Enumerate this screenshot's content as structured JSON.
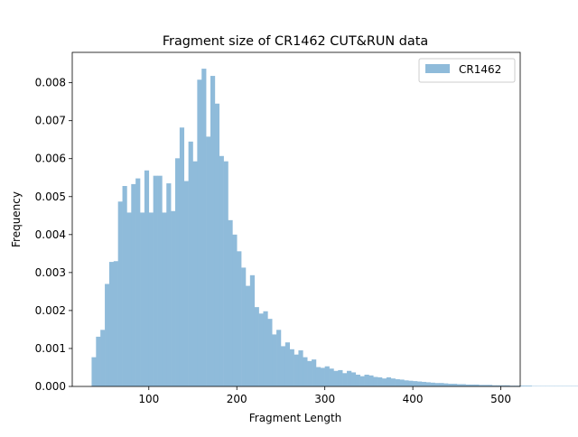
{
  "chart_data": {
    "type": "histogram",
    "title": "Fragment size of CR1462 CUT&RUN data",
    "xlabel": "Fragment Length",
    "ylabel": "Frequency",
    "xlim": [
      13,
      522
    ],
    "ylim": [
      0,
      0.0088
    ],
    "xticks": [
      100,
      200,
      300,
      400,
      500
    ],
    "yticks": [
      0.0,
      0.001,
      0.002,
      0.003,
      0.004,
      0.005,
      0.006,
      0.007,
      0.008
    ],
    "ytick_labels": [
      "0.000",
      "0.001",
      "0.002",
      "0.003",
      "0.004",
      "0.005",
      "0.006",
      "0.007",
      "0.008"
    ],
    "grid": false,
    "legend": {
      "position": "top-right",
      "entries": [
        "CR1462"
      ]
    },
    "bar_color": "#8fbbda",
    "series": [
      {
        "name": "CR1462",
        "bin_start": 35,
        "bin_width": 5,
        "values": [
          0.00077,
          0.00131,
          0.00149,
          0.0027,
          0.00328,
          0.0033,
          0.00487,
          0.00528,
          0.00458,
          0.00533,
          0.00548,
          0.00458,
          0.00569,
          0.00458,
          0.00555,
          0.00555,
          0.00458,
          0.00535,
          0.00462,
          0.00601,
          0.00682,
          0.00541,
          0.00645,
          0.00593,
          0.00808,
          0.00837,
          0.00658,
          0.00818,
          0.00745,
          0.00607,
          0.00593,
          0.00438,
          0.004,
          0.00356,
          0.00313,
          0.00265,
          0.00293,
          0.00209,
          0.00192,
          0.00198,
          0.00178,
          0.00137,
          0.00149,
          0.00106,
          0.00116,
          0.00098,
          0.00084,
          0.00095,
          0.00077,
          0.00067,
          0.00071,
          0.00051,
          0.00049,
          0.00053,
          0.00047,
          0.00041,
          0.00043,
          0.00035,
          0.00041,
          0.00037,
          0.00031,
          0.00027,
          0.00031,
          0.00029,
          0.00025,
          0.00024,
          0.00021,
          0.00024,
          0.00021,
          0.00019,
          0.00018,
          0.00016,
          0.00015,
          0.00014,
          0.00013,
          0.00012,
          0.00011,
          0.0001,
          9e-05,
          9e-05,
          8e-05,
          7e-05,
          7e-05,
          6e-05,
          6e-05,
          5e-05,
          5e-05,
          5e-05,
          4e-05,
          4e-05,
          4e-05,
          3e-05,
          3e-05,
          3e-05,
          3e-05,
          2e-05,
          2e-05,
          2e-05,
          2e-05,
          2e-05,
          1e-05,
          1e-05,
          1e-05,
          1e-05,
          1e-05,
          1e-05,
          1e-05,
          1e-05,
          1e-05,
          1e-05,
          1e-05,
          1e-05,
          1e-05
        ]
      }
    ]
  }
}
